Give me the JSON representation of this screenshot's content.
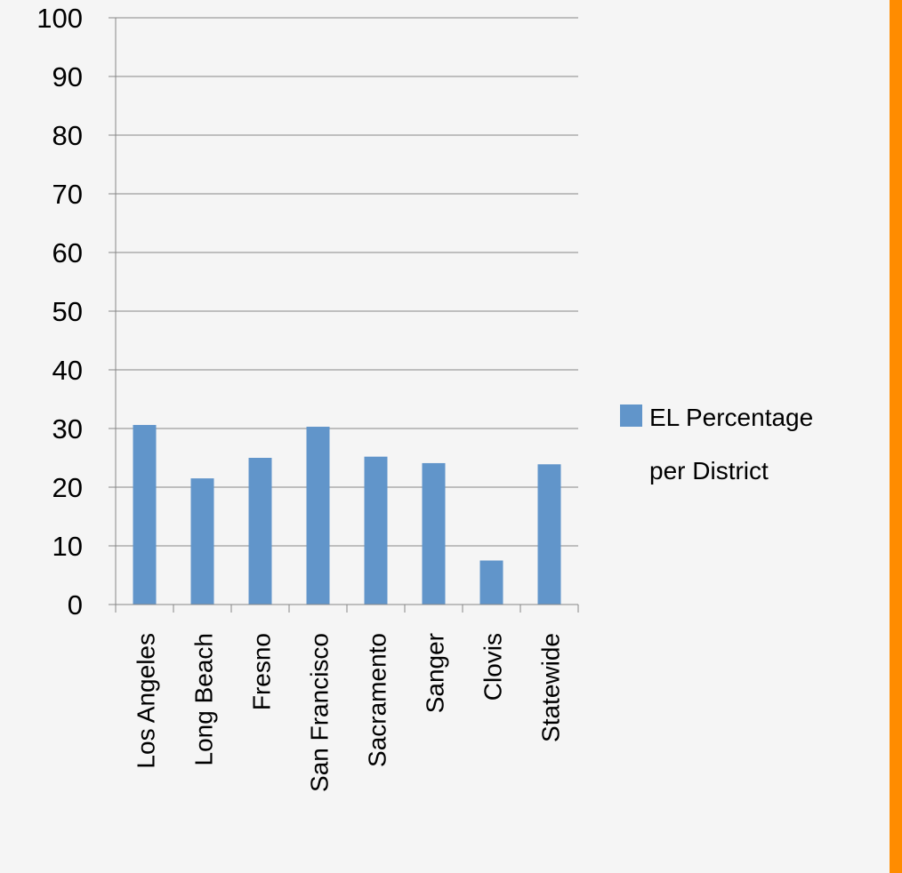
{
  "colors": {
    "background": "#f5f5f5",
    "bar": "#6195CA",
    "gridline": "#868686",
    "side_stripe": "#FF8C00"
  },
  "chart_data": {
    "type": "bar",
    "categories": [
      "Los Angeles",
      "Long Beach",
      "Fresno",
      "San Francisco",
      "Sacramento",
      "Sanger",
      "Clovis",
      "Statewide"
    ],
    "series": [
      {
        "name": "EL Percentage per District",
        "values": [
          30.6,
          21.5,
          25.0,
          30.3,
          25.2,
          24.1,
          7.5,
          23.9
        ]
      }
    ],
    "yticks": [
      "0",
      "10",
      "20",
      "30",
      "40",
      "50",
      "60",
      "70",
      "80",
      "90",
      "100"
    ],
    "ylim": [
      0,
      100
    ],
    "ytick_step": 10,
    "title": "",
    "xlabel": "",
    "ylabel": "",
    "grid": "horizontal",
    "legend": {
      "placement": "right",
      "lines": [
        "EL Percentage",
        "per District"
      ]
    }
  }
}
